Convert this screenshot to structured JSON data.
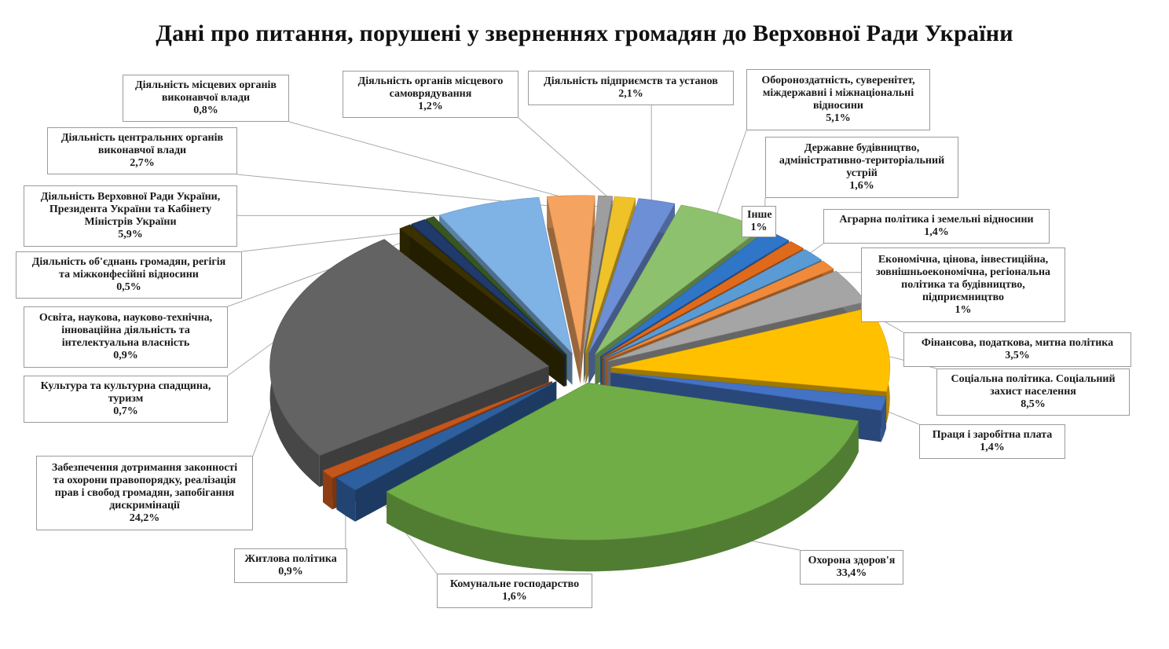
{
  "title": "Дані про питання, порушені у зверненнях громадян до Верховної Ради України",
  "chart_data": {
    "type": "pie",
    "style": "3d-exploded",
    "title": "Дані про питання, порушені у зверненнях громадян до Верховної Ради України",
    "slices": [
      {
        "name": "Діяльність місцевих органів виконавчої влади",
        "value": 0.8,
        "label": "0,8%",
        "color": "#9e9e9e"
      },
      {
        "name": "Діяльність органів місцевого самоврядування",
        "value": 1.2,
        "label": "1,2%",
        "color": "#f0c22a"
      },
      {
        "name": "Діяльність підприємств та установ",
        "value": 2.1,
        "label": "2,1%",
        "color": "#6d8fd6"
      },
      {
        "name": "Обороноздатність, суверенітет, міждержавні і міжнаціональні відносини",
        "value": 5.1,
        "label": "5,1%",
        "color": "#8ec16d"
      },
      {
        "name": "Державне будівництво, адміністративно-територіальний устрій",
        "value": 1.6,
        "label": "1,6%",
        "color": "#2f75c8"
      },
      {
        "name": "Інше",
        "value": 1.0,
        "label": "1%",
        "color": "#e06a1c"
      },
      {
        "name": "Аграрна політика і земельні відносини",
        "value": 1.4,
        "label": "1,4%",
        "color": "#5b9bd5"
      },
      {
        "name": "Економічна, цінова, інвестиційна, зовнішньоекономічна, регіональна політика та будівництво, підприємництво",
        "value": 1.0,
        "label": "1%",
        "color": "#f08a3a"
      },
      {
        "name": "Фінансова, податкова, митна політика",
        "value": 3.5,
        "label": "3,5%",
        "color": "#a5a5a5"
      },
      {
        "name": "Соціальна політика. Соціальний захист населення",
        "value": 8.5,
        "label": "8,5%",
        "color": "#ffc000"
      },
      {
        "name": "Праця і заробітна плата",
        "value": 1.4,
        "label": "1,4%",
        "color": "#4472c4"
      },
      {
        "name": "Охорона здоров'я",
        "value": 33.4,
        "label": "33,4%",
        "color": "#70ad47"
      },
      {
        "name": "Комунальне господарство",
        "value": 1.6,
        "label": "1,6%",
        "color": "#2e5f9e"
      },
      {
        "name": "Житлова політика",
        "value": 0.9,
        "label": "0,9%",
        "color": "#c5561a"
      },
      {
        "name": "Забезпечення дотримання законності та охорони правопорядку, реалізація прав і свобод громадян, запобігання дискримінації",
        "value": 24.2,
        "label": "24,2%",
        "color": "#636363"
      },
      {
        "name": "Культура та культурна спадщина, туризм",
        "value": 0.7,
        "label": "0,7%",
        "color": "#3a3000"
      },
      {
        "name": "Освіта, наукова, науково-технічна, інноваційна діяльність та інтелектуальна власність",
        "value": 0.9,
        "label": "0,9%",
        "color": "#1f3a6b"
      },
      {
        "name": "Діяльність об'єднань громадян, регігія та міжконфесійні відносини",
        "value": 0.5,
        "label": "0,5%",
        "color": "#375623"
      },
      {
        "name": "Діяльність Верховної Ради України, Президента України та Кабінету Міністрів України",
        "value": 5.9,
        "label": "5,9%",
        "color": "#7fb2e5"
      },
      {
        "name": "Діяльність центральних органів виконавчої влади",
        "value": 2.7,
        "label": "2,7%",
        "color": "#f4a460"
      }
    ]
  },
  "labels": [
    {
      "lines": [
        "Діяльність місцевих органів",
        "виконавчої влади",
        "0,8%"
      ]
    },
    {
      "lines": [
        "Діяльність органів місцевого",
        "самоврядування",
        "1,2%"
      ]
    },
    {
      "lines": [
        "Діяльність підприємств та установ",
        "2,1%"
      ]
    },
    {
      "lines": [
        "Обороноздатність, суверенітет,",
        "міждержавні і міжнаціональні",
        "відносини",
        "5,1%"
      ]
    },
    {
      "lines": [
        "Державне будівництво,",
        "адміністративно-територіальний",
        "устрій",
        "1,6%"
      ]
    },
    {
      "lines": [
        "Інше",
        "1%"
      ]
    },
    {
      "lines": [
        "Аграрна політика і земельні відносини",
        "1,4%"
      ]
    },
    {
      "lines": [
        "Економічна, цінова, інвестиційна,",
        "зовнішньоекономічна, регіональна",
        "політика та будівництво,",
        "підприємництво",
        "1%"
      ]
    },
    {
      "lines": [
        "Фінансова, податкова, митна політика",
        "3,5%"
      ]
    },
    {
      "lines": [
        "Соціальна політика. Соціальний",
        "захист населення",
        "8,5%"
      ]
    },
    {
      "lines": [
        "Праця і заробітна плата",
        "1,4%"
      ]
    },
    {
      "lines": [
        "Охорона здоров'я",
        "33,4%"
      ]
    },
    {
      "lines": [
        "Комунальне господарство",
        "1,6%"
      ]
    },
    {
      "lines": [
        "Житлова політика",
        "0,9%"
      ]
    },
    {
      "lines": [
        "Забезпечення дотримання законності",
        "та охорони правопорядку, реалізація",
        "прав і свобод громадян, запобігання",
        "дискримінації",
        "24,2%"
      ]
    },
    {
      "lines": [
        "Культура та культурна спадщина,",
        "туризм",
        "0,7%"
      ]
    },
    {
      "lines": [
        "Освіта, наукова, науково-технічна,",
        "інноваційна діяльність та",
        "інтелектуальна власність",
        "0,9%"
      ]
    },
    {
      "lines": [
        "Діяльність об'єднань громадян, регігія",
        "та міжконфесійні відносини",
        "0,5%"
      ]
    },
    {
      "lines": [
        "Діяльність Верховної Ради України,",
        "Президента України та Кабінету",
        "Міністрів України",
        "5,9%"
      ]
    },
    {
      "lines": [
        "Діяльність центральних органів",
        "виконавчої влади",
        "2,7%"
      ]
    }
  ]
}
